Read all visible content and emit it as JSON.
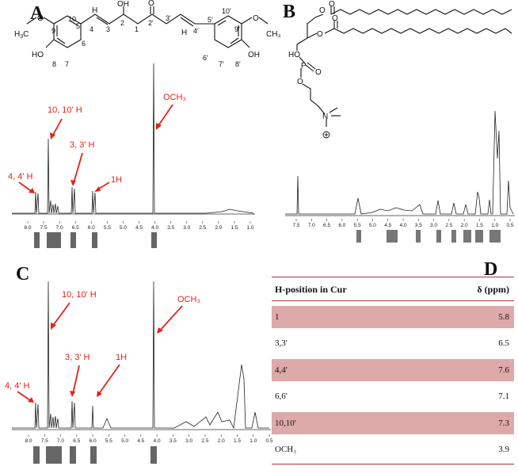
{
  "panels": {
    "a": "A",
    "b": "B",
    "c": "C",
    "d": "D"
  },
  "spectrum_a": {
    "ticks": [
      "8.0",
      "7.5",
      "7.0",
      "6.5",
      "6.0",
      "5.5",
      "5.0",
      "4.5",
      "4.0",
      "3.5",
      "3.0",
      "2.5",
      "2.0",
      "1.5",
      "1.0"
    ],
    "annotations": [
      "4, 4' H",
      "10, 10' H",
      "3, 3' H",
      "1H",
      "OCH₃"
    ]
  },
  "spectrum_b": {
    "ticks": [
      "7.5",
      "7.0",
      "6.5",
      "6.0",
      "5.5",
      "5.0",
      "4.5",
      "4.0",
      "3.5",
      "3.0",
      "2.5",
      "2.0",
      "1.5",
      "1.0",
      "0.5"
    ]
  },
  "spectrum_c": {
    "ticks": [
      "8.0",
      "7.5",
      "7.0",
      "6.5",
      "6.0",
      "5.5",
      "5.0",
      "4.5",
      "4.0",
      "3.5",
      "3.0",
      "2.5",
      "2.0",
      "1.5",
      "1.0",
      "0.5"
    ],
    "annotations": [
      "4, 4' H",
      "10, 10' H",
      "3, 3' H",
      "1H",
      "OCH₃"
    ]
  },
  "structure_a": {
    "atoms": [
      "O",
      "HO",
      "OH",
      "O"
    ],
    "numbers": [
      "10",
      "9",
      "5",
      "4",
      "3",
      "2",
      "1",
      "2'",
      "3'",
      "4'",
      "5'",
      "10'",
      "9'",
      "8",
      "7",
      "6",
      "6'",
      "7'",
      "8'"
    ],
    "groups": [
      "CH₃",
      "H",
      "H"
    ]
  },
  "structure_b": {
    "atoms": [
      "O",
      "O",
      "O",
      "O",
      "HO",
      "P",
      "O",
      "O",
      "N"
    ]
  },
  "table": {
    "header": {
      "col1": "H-position in Cur",
      "col2": "δ (ppm)"
    },
    "rows": [
      {
        "pos": "1",
        "ppm": "5.8"
      },
      {
        "pos": "3,3'",
        "ppm": "6.5"
      },
      {
        "pos": "4,4'",
        "ppm": "7.6"
      },
      {
        "pos": "6,6'",
        "ppm": "7.1"
      },
      {
        "pos": "10,10'",
        "ppm": "7.3"
      },
      {
        "pos": "OCH₃",
        "ppm": "3.9"
      }
    ]
  },
  "colors": {
    "annotation": "#e0231b",
    "table_shade": "#dea9a9",
    "rule": "#aa3333"
  }
}
